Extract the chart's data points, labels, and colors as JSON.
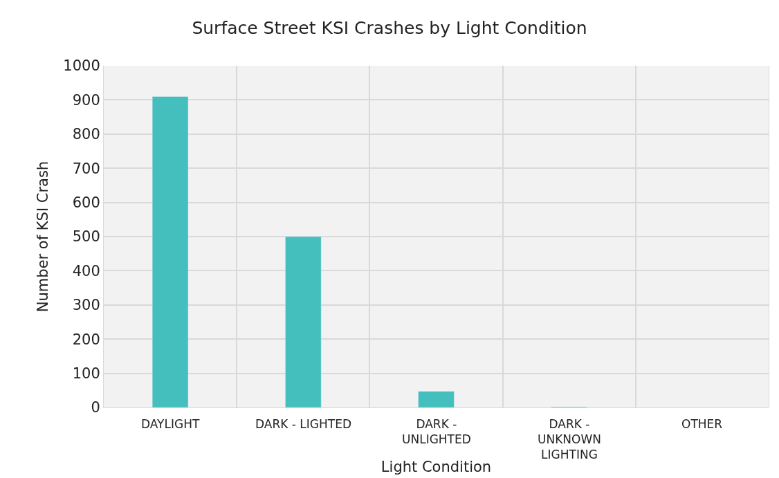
{
  "chart_data": {
    "type": "bar",
    "title": "Surface Street KSI Crashes by Light Condition",
    "xlabel": "Light Condition",
    "ylabel": "Number of KSI Crash",
    "categories": [
      "DAYLIGHT",
      "DARK - LIGHTED",
      "DARK -\nUNLIGHTED",
      "DARK -\nUNKNOWN\nLIGHTING",
      "OTHER"
    ],
    "values": [
      910,
      500,
      47,
      2,
      null
    ],
    "color": "#45bfbd",
    "ylim": [
      0,
      1000
    ],
    "yticks": [
      0,
      100,
      200,
      300,
      400,
      500,
      600,
      700,
      800,
      900,
      1000
    ],
    "grid": true,
    "legend": false
  }
}
